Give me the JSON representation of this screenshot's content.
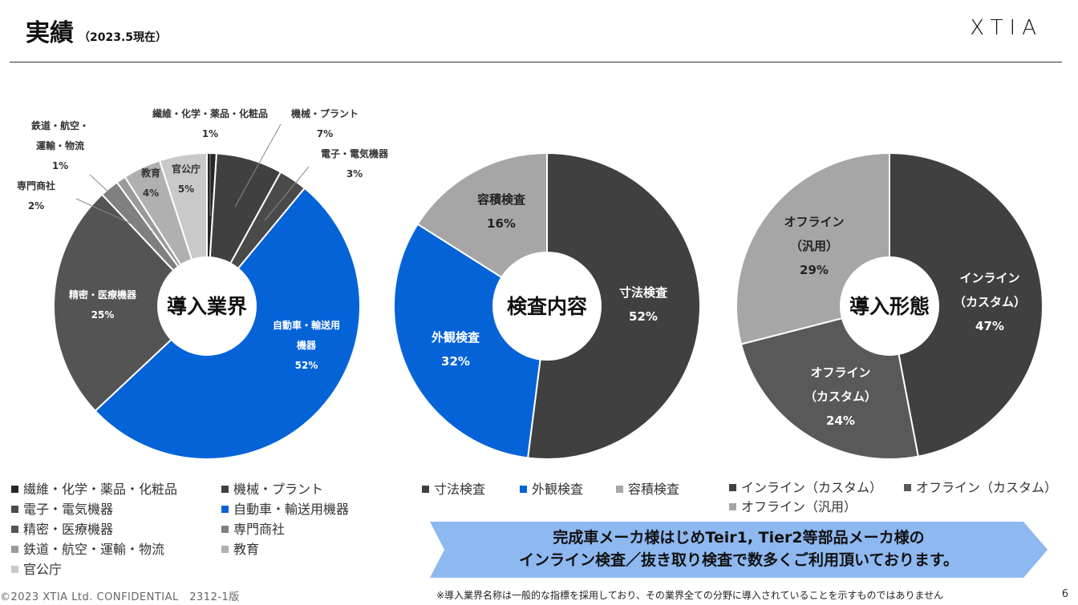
{
  "header": {
    "title": "実績",
    "subtitle": "（2023.5現在）",
    "logo": "XTIA"
  },
  "chart_data": [
    {
      "type": "pie",
      "title": "導入業界",
      "categories": [
        "繊維・化学・薬品・化粧品",
        "機械・プラント",
        "電子・電気機器",
        "自動車・輸送用機器",
        "精密・医療機器",
        "専門商社",
        "鉄道・航空・運輸・物流",
        "教育",
        "官公庁"
      ],
      "values": [
        1,
        7,
        3,
        52,
        25,
        2,
        1,
        4,
        5
      ],
      "colors": [
        "#262626",
        "#404040",
        "#4a4a4a",
        "#0563d8",
        "#545454",
        "#7f7f7f",
        "#9a9a9a",
        "#b0b0b0",
        "#c9c9c9"
      ],
      "labels": [
        {
          "lines": [
            "繊維・化学・薬品・化粧品"
          ],
          "pct": "1%"
        },
        {
          "lines": [
            "機械・プラント"
          ],
          "pct": "7%"
        },
        {
          "lines": [
            "電子・電気機器"
          ],
          "pct": "3%"
        },
        {
          "lines": [
            "自動車・輸送用",
            "機器"
          ],
          "pct": "52%"
        },
        {
          "lines": [
            "精密・医療機器"
          ],
          "pct": "25%"
        },
        {
          "lines": [
            "専門商社"
          ],
          "pct": "2%"
        },
        {
          "lines": [
            "鉄道・航空・",
            "運輸・物流"
          ],
          "pct": "1%"
        },
        {
          "lines": [
            "教育"
          ],
          "pct": "4%"
        },
        {
          "lines": [
            "官公庁"
          ],
          "pct": "5%"
        }
      ]
    },
    {
      "type": "pie",
      "title": "検査内容",
      "categories": [
        "寸法検査",
        "外観検査",
        "容積検査"
      ],
      "values": [
        52,
        32,
        16
      ],
      "colors": [
        "#404040",
        "#0563d8",
        "#a6a6a6"
      ],
      "labels": [
        {
          "lines": [
            "寸法検査"
          ],
          "pct": "52%"
        },
        {
          "lines": [
            "外観検査"
          ],
          "pct": "32%"
        },
        {
          "lines": [
            "容積検査"
          ],
          "pct": "16%"
        }
      ]
    },
    {
      "type": "pie",
      "title": "導入形態",
      "categories": [
        "インライン（カスタム）",
        "オフライン（カスタム）",
        "オフライン（汎用）"
      ],
      "values": [
        47,
        24,
        29
      ],
      "colors": [
        "#404040",
        "#595959",
        "#a6a6a6"
      ],
      "labels": [
        {
          "lines": [
            "インライン",
            "（カスタム）"
          ],
          "pct": "47%"
        },
        {
          "lines": [
            "オフライン",
            "（カスタム）"
          ],
          "pct": "24%"
        },
        {
          "lines": [
            "オフライン",
            "（汎用）"
          ],
          "pct": "29%"
        }
      ]
    }
  ],
  "banner": {
    "line1": "完成車メーカ様はじめTeir1, Tier2等部品メーカ様の",
    "line2": "インライン検査／抜き取り検査で数多くご利用頂いております。"
  },
  "footer": {
    "copyright": "©2023 XTIA Ltd. CONFIDENTIAL　2312-1版",
    "note": "※導入業界名称は一般的な指標を採用しており、その業界全ての分野に導入されていることを示すものではありません",
    "page": "6"
  }
}
